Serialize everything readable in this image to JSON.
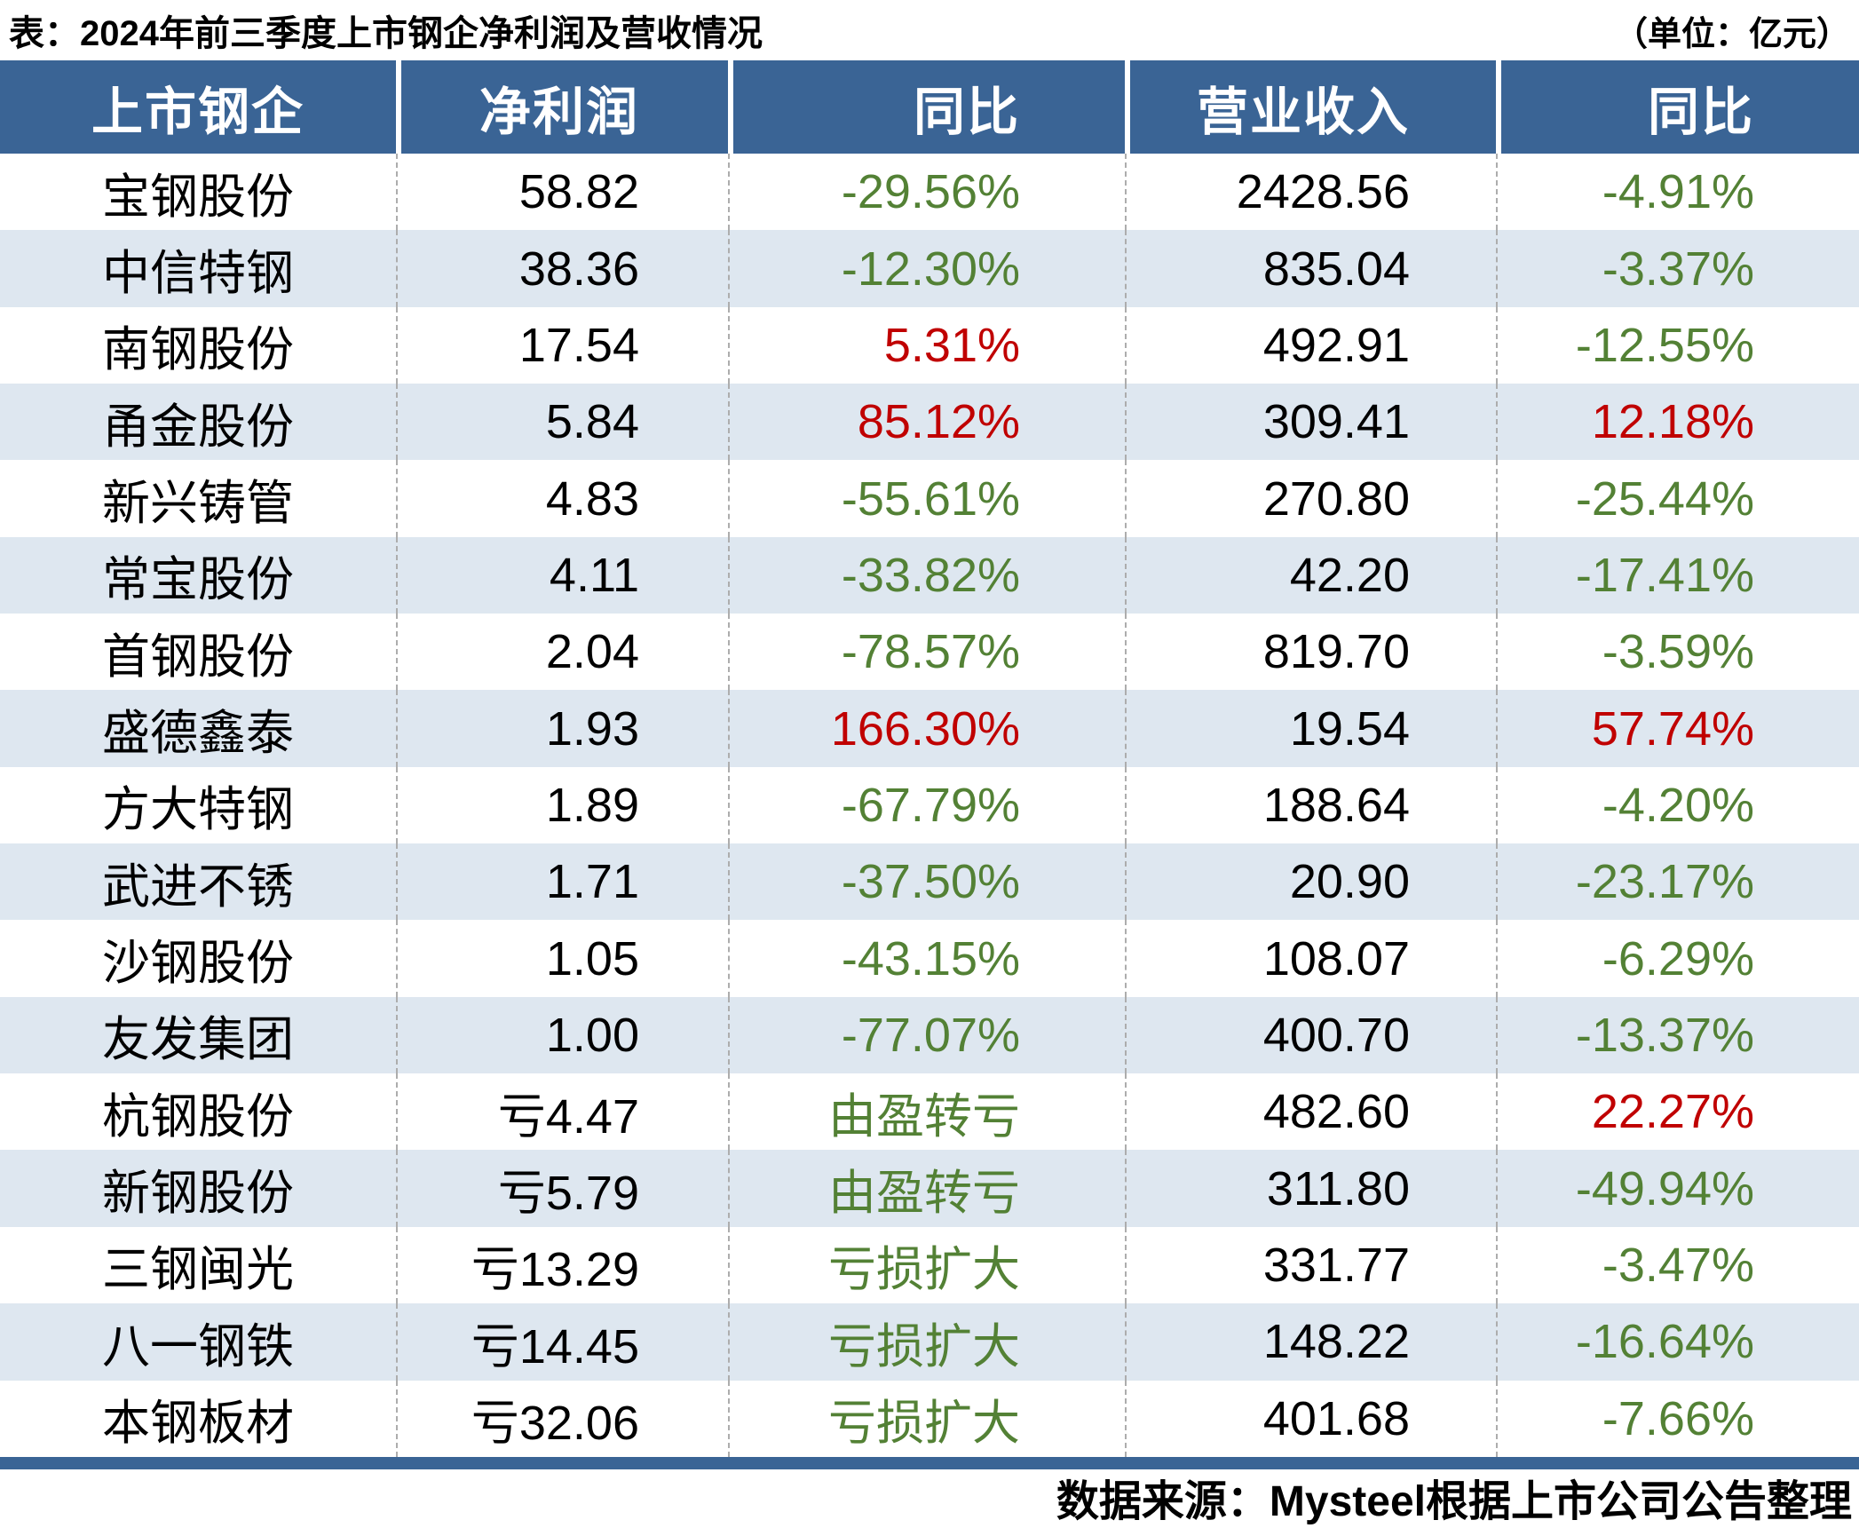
{
  "title": "表：2024年前三季度上市钢企净利润及营收情况",
  "unit_note": "（单位：亿元）",
  "footer": {
    "source_note": "数据来源：Mysteel根据上市公司公告整理"
  },
  "colors": {
    "header_bg": "#3A6495",
    "row_alt_bg": "#DEE7F0",
    "positive_red": "#C00000",
    "negative_green": "#538135",
    "divider_gray": "#ADADAD"
  },
  "table": {
    "columns": [
      "上市钢企",
      "净利润",
      "同比",
      "营业收入",
      "同比"
    ],
    "rows": [
      {
        "company": "宝钢股份",
        "net_profit": "58.82",
        "profit_yoy": "-29.56%",
        "profit_yoy_color": "green",
        "revenue": "2428.56",
        "revenue_yoy": "-4.91%",
        "revenue_yoy_color": "green"
      },
      {
        "company": "中信特钢",
        "net_profit": "38.36",
        "profit_yoy": "-12.30%",
        "profit_yoy_color": "green",
        "revenue": "835.04",
        "revenue_yoy": "-3.37%",
        "revenue_yoy_color": "green"
      },
      {
        "company": "南钢股份",
        "net_profit": "17.54",
        "profit_yoy": "5.31%",
        "profit_yoy_color": "red",
        "revenue": "492.91",
        "revenue_yoy": "-12.55%",
        "revenue_yoy_color": "green"
      },
      {
        "company": "甬金股份",
        "net_profit": "5.84",
        "profit_yoy": "85.12%",
        "profit_yoy_color": "red",
        "revenue": "309.41",
        "revenue_yoy": "12.18%",
        "revenue_yoy_color": "red"
      },
      {
        "company": "新兴铸管",
        "net_profit": "4.83",
        "profit_yoy": "-55.61%",
        "profit_yoy_color": "green",
        "revenue": "270.80",
        "revenue_yoy": "-25.44%",
        "revenue_yoy_color": "green"
      },
      {
        "company": "常宝股份",
        "net_profit": "4.11",
        "profit_yoy": "-33.82%",
        "profit_yoy_color": "green",
        "revenue": "42.20",
        "revenue_yoy": "-17.41%",
        "revenue_yoy_color": "green"
      },
      {
        "company": "首钢股份",
        "net_profit": "2.04",
        "profit_yoy": "-78.57%",
        "profit_yoy_color": "green",
        "revenue": "819.70",
        "revenue_yoy": "-3.59%",
        "revenue_yoy_color": "green"
      },
      {
        "company": "盛德鑫泰",
        "net_profit": "1.93",
        "profit_yoy": "166.30%",
        "profit_yoy_color": "red",
        "revenue": "19.54",
        "revenue_yoy": "57.74%",
        "revenue_yoy_color": "red"
      },
      {
        "company": "方大特钢",
        "net_profit": "1.89",
        "profit_yoy": "-67.79%",
        "profit_yoy_color": "green",
        "revenue": "188.64",
        "revenue_yoy": "-4.20%",
        "revenue_yoy_color": "green"
      },
      {
        "company": "武进不锈",
        "net_profit": "1.71",
        "profit_yoy": "-37.50%",
        "profit_yoy_color": "green",
        "revenue": "20.90",
        "revenue_yoy": "-23.17%",
        "revenue_yoy_color": "green"
      },
      {
        "company": "沙钢股份",
        "net_profit": "1.05",
        "profit_yoy": "-43.15%",
        "profit_yoy_color": "green",
        "revenue": "108.07",
        "revenue_yoy": "-6.29%",
        "revenue_yoy_color": "green"
      },
      {
        "company": "友发集团",
        "net_profit": "1.00",
        "profit_yoy": "-77.07%",
        "profit_yoy_color": "green",
        "revenue": "400.70",
        "revenue_yoy": "-13.37%",
        "revenue_yoy_color": "green"
      },
      {
        "company": "杭钢股份",
        "net_profit": "亏4.47",
        "profit_yoy": "由盈转亏",
        "profit_yoy_color": "green",
        "revenue": "482.60",
        "revenue_yoy": "22.27%",
        "revenue_yoy_color": "red"
      },
      {
        "company": "新钢股份",
        "net_profit": "亏5.79",
        "profit_yoy": "由盈转亏",
        "profit_yoy_color": "green",
        "revenue": "311.80",
        "revenue_yoy": "-49.94%",
        "revenue_yoy_color": "green"
      },
      {
        "company": "三钢闽光",
        "net_profit": "亏13.29",
        "profit_yoy": "亏损扩大",
        "profit_yoy_color": "green",
        "revenue": "331.77",
        "revenue_yoy": "-3.47%",
        "revenue_yoy_color": "green"
      },
      {
        "company": "八一钢铁",
        "net_profit": "亏14.45",
        "profit_yoy": "亏损扩大",
        "profit_yoy_color": "green",
        "revenue": "148.22",
        "revenue_yoy": "-16.64%",
        "revenue_yoy_color": "green"
      },
      {
        "company": "本钢板材",
        "net_profit": "亏32.06",
        "profit_yoy": "亏损扩大",
        "profit_yoy_color": "green",
        "revenue": "401.68",
        "revenue_yoy": "-7.66%",
        "revenue_yoy_color": "green"
      }
    ]
  },
  "chart_data": {
    "type": "table",
    "title": "2024年前三季度上市钢企净利润及营收情况",
    "unit": "亿元",
    "columns": [
      "上市钢企",
      "净利润",
      "同比",
      "营业收入",
      "同比"
    ],
    "rows": [
      [
        "宝钢股份",
        58.82,
        "-29.56%",
        2428.56,
        "-4.91%"
      ],
      [
        "中信特钢",
        38.36,
        "-12.30%",
        835.04,
        "-3.37%"
      ],
      [
        "南钢股份",
        17.54,
        "5.31%",
        492.91,
        "-12.55%"
      ],
      [
        "甬金股份",
        5.84,
        "85.12%",
        309.41,
        "12.18%"
      ],
      [
        "新兴铸管",
        4.83,
        "-55.61%",
        270.8,
        "-25.44%"
      ],
      [
        "常宝股份",
        4.11,
        "-33.82%",
        42.2,
        "-17.41%"
      ],
      [
        "首钢股份",
        2.04,
        "-78.57%",
        819.7,
        "-3.59%"
      ],
      [
        "盛德鑫泰",
        1.93,
        "166.30%",
        19.54,
        "57.74%"
      ],
      [
        "方大特钢",
        1.89,
        "-67.79%",
        188.64,
        "-4.20%"
      ],
      [
        "武进不锈",
        1.71,
        "-37.50%",
        20.9,
        "-23.17%"
      ],
      [
        "沙钢股份",
        1.05,
        "-43.15%",
        108.07,
        "-6.29%"
      ],
      [
        "友发集团",
        1.0,
        "-77.07%",
        400.7,
        "-13.37%"
      ],
      [
        "杭钢股份",
        -4.47,
        "由盈转亏",
        482.6,
        "22.27%"
      ],
      [
        "新钢股份",
        -5.79,
        "由盈转亏",
        311.8,
        "-49.94%"
      ],
      [
        "三钢闽光",
        -13.29,
        "亏损扩大",
        331.77,
        "-3.47%"
      ],
      [
        "八一钢铁",
        -14.45,
        "亏损扩大",
        148.22,
        "-16.64%"
      ],
      [
        "本钢板材",
        -32.06,
        "亏损扩大",
        401.68,
        "-7.66%"
      ]
    ],
    "source": "数据来源：Mysteel根据上市公司公告整理"
  }
}
